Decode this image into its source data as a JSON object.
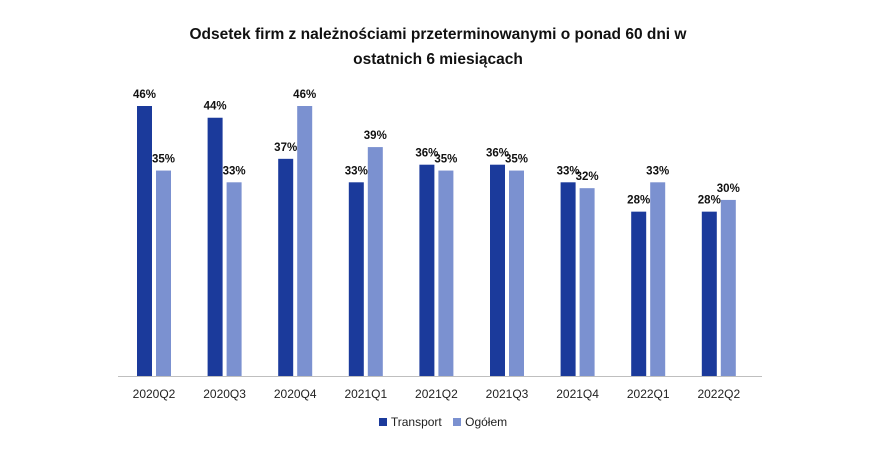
{
  "chart_data": {
    "type": "bar",
    "title_line1": "Odsetek firm z należnościami przeterminowanymi o ponad 60 dni w",
    "title_line2": "ostatnich 6 miesiącach",
    "categories": [
      "2020Q2",
      "2020Q3",
      "2020Q4",
      "2021Q1",
      "2021Q2",
      "2021Q3",
      "2021Q4",
      "2022Q1",
      "2022Q2"
    ],
    "series": [
      {
        "name": "Transport",
        "color": "#1b3a9b",
        "values": [
          46,
          44,
          37,
          33,
          36,
          36,
          33,
          28,
          28
        ]
      },
      {
        "name": "Ogółem",
        "color": "#7b91d0",
        "values": [
          35,
          33,
          46,
          39,
          35,
          35,
          32,
          33,
          30
        ]
      }
    ],
    "value_suffix": "%",
    "ylim": [
      0,
      46
    ],
    "grid": false,
    "legend_position": "bottom"
  }
}
